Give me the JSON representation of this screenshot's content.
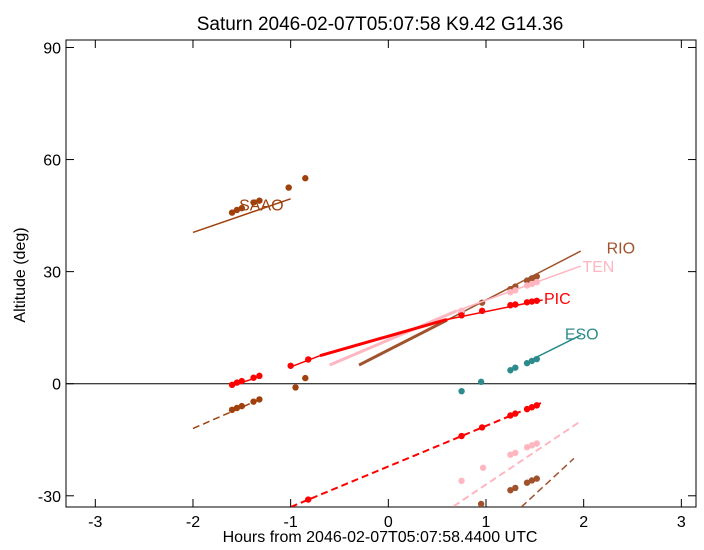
{
  "chart_data": {
    "type": "line",
    "title": "Saturn 2046-02-07T05:07:58  K9.42  G14.36",
    "xlabel": "Hours from 2046-02-07T05:07:58.4400 UTC",
    "ylabel": "Altitude (deg)",
    "xlim": [
      -3.3,
      3.15
    ],
    "ylim": [
      -33,
      92
    ],
    "xticks": [
      -3,
      -2,
      -1,
      0,
      1,
      2,
      3
    ],
    "yticks": [
      -30,
      0,
      30,
      60,
      90
    ],
    "zero_line": true,
    "series": [
      {
        "name": "SAAO",
        "color": "#a0410d",
        "label_pos": [
          -1.3,
          48
        ],
        "segments": [
          {
            "x": [
              -2.0,
              -1.0
            ],
            "y": [
              40.5,
              49.5
            ],
            "style": "solid",
            "width": 1.5
          },
          {
            "x": [
              -2.0,
              -1.3
            ],
            "y": [
              -12,
              -4
            ],
            "style": "dashed",
            "width": 1.5
          }
        ],
        "points": [
          [
            -1.6,
            45.8
          ],
          [
            -1.55,
            46.5
          ],
          [
            -1.5,
            47
          ],
          [
            -1.38,
            48.5
          ],
          [
            -1.32,
            49
          ],
          [
            -1.02,
            52.5
          ],
          [
            -0.85,
            55
          ],
          [
            -1.6,
            -7
          ],
          [
            -1.55,
            -6.5
          ],
          [
            -1.5,
            -6
          ],
          [
            -1.38,
            -4.8
          ],
          [
            -1.32,
            -4.2
          ],
          [
            -0.95,
            -1
          ],
          [
            -0.85,
            1.5
          ]
        ]
      },
      {
        "name": "RIO",
        "color": "#a0522d",
        "label_pos": [
          2.38,
          36.5
        ],
        "segments": [
          {
            "x": [
              -0.3,
              0.6
            ],
            "y": [
              5,
              17
            ],
            "style": "solid",
            "width": 3
          },
          {
            "x": [
              0.6,
              1.97
            ],
            "y": [
              17,
              35.5
            ],
            "style": "solid",
            "width": 1.5
          },
          {
            "x": [
              0.7,
              1.9
            ],
            "y": [
              -49,
              -20
            ],
            "style": "dashed",
            "width": 1.5
          }
        ],
        "points": [
          [
            0.75,
            19
          ],
          [
            0.96,
            21.7
          ],
          [
            1.25,
            25.3
          ],
          [
            1.3,
            26
          ],
          [
            1.42,
            27.6
          ],
          [
            1.47,
            28.2
          ],
          [
            1.52,
            28.7
          ],
          [
            0.95,
            -32.2
          ],
          [
            1.25,
            -28.5
          ],
          [
            1.3,
            -27.9
          ],
          [
            1.42,
            -26.5
          ],
          [
            1.47,
            -25.9
          ],
          [
            1.52,
            -25.4
          ]
        ]
      },
      {
        "name": "TEN",
        "color": "#ffb6c1",
        "label_pos": [
          2.15,
          31.5
        ],
        "segments": [
          {
            "x": [
              -0.6,
              0.7
            ],
            "y": [
              5,
              19.5
            ],
            "style": "solid",
            "width": 3
          },
          {
            "x": [
              0.7,
              1.97
            ],
            "y": [
              19.5,
              31.5
            ],
            "style": "solid",
            "width": 1.5
          },
          {
            "x": [
              0.2,
              1.97
            ],
            "y": [
              -41,
              -10
            ],
            "style": "dashed",
            "width": 2
          }
        ],
        "points": [
          [
            0.75,
            19.5
          ],
          [
            1.25,
            24.5
          ],
          [
            1.3,
            25
          ],
          [
            1.42,
            26.3
          ],
          [
            1.47,
            26.7
          ],
          [
            1.52,
            27.2
          ],
          [
            0.75,
            -26
          ],
          [
            0.97,
            -22.5
          ],
          [
            1.25,
            -19
          ],
          [
            1.3,
            -18.5
          ],
          [
            1.42,
            -17
          ],
          [
            1.47,
            -16.5
          ],
          [
            1.52,
            -16
          ]
        ]
      },
      {
        "name": "PIC",
        "color": "#ff0000",
        "label_pos": [
          1.73,
          23
        ],
        "segments": [
          {
            "x": [
              -0.7,
              0.6
            ],
            "y": [
              7.5,
              17.2
            ],
            "style": "solid",
            "width": 3
          },
          {
            "x": [
              -1.0,
              -0.7
            ],
            "y": [
              4.5,
              7.5
            ],
            "style": "solid",
            "width": 1.5
          },
          {
            "x": [
              0.6,
              1.58
            ],
            "y": [
              17.2,
              22.4
            ],
            "style": "solid",
            "width": 1.5
          },
          {
            "x": [
              -1.6,
              -1.3
            ],
            "y": [
              -0.5,
              2
            ],
            "style": "solid",
            "width": 1.5
          },
          {
            "x": [
              -1.0,
              1.58
            ],
            "y": [
              -33,
              -5
            ],
            "style": "dashed",
            "width": 2
          }
        ],
        "points": [
          [
            -1.6,
            -0.3
          ],
          [
            -1.55,
            0.3
          ],
          [
            -1.5,
            0.7
          ],
          [
            -1.38,
            1.6
          ],
          [
            -1.32,
            2.1
          ],
          [
            -1.0,
            4.8
          ],
          [
            -0.82,
            6.5
          ],
          [
            0.75,
            18.3
          ],
          [
            0.96,
            19.5
          ],
          [
            1.25,
            21
          ],
          [
            1.3,
            21.2
          ],
          [
            1.42,
            21.8
          ],
          [
            1.47,
            22
          ],
          [
            1.52,
            22.2
          ],
          [
            -0.82,
            -31
          ],
          [
            0.75,
            -14
          ],
          [
            0.96,
            -11.7
          ],
          [
            1.25,
            -8.5
          ],
          [
            1.3,
            -8
          ],
          [
            1.42,
            -6.8
          ],
          [
            1.47,
            -6.3
          ],
          [
            1.52,
            -5.8
          ]
        ]
      },
      {
        "name": "ESO",
        "color": "#2e8b8b",
        "label_pos": [
          1.98,
          13.5
        ],
        "segments": [
          {
            "x": [
              1.47,
              1.97
            ],
            "y": [
              6.5,
              13
            ]
          }
        ],
        "points": [
          [
            0.75,
            -2
          ],
          [
            0.95,
            0.5
          ],
          [
            1.25,
            3.6
          ],
          [
            1.3,
            4.3
          ],
          [
            1.42,
            5.5
          ],
          [
            1.47,
            6.1
          ],
          [
            1.52,
            6.6
          ]
        ]
      }
    ]
  }
}
